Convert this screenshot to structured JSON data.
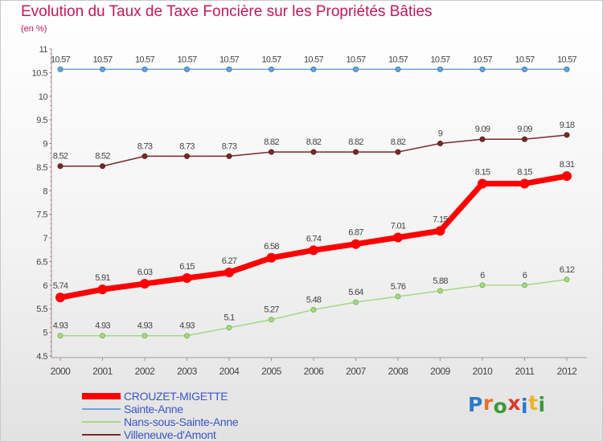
{
  "title": "Evolution du Taux de Taxe Foncière sur les Propriétés Bâties",
  "unit": "(en %)",
  "logo": {
    "text": "Proxiti",
    "colors": [
      "#2b7bc9",
      "#e8702a",
      "#3a9a3a",
      "#d93a2a",
      "#2b7bc9",
      "#e8b52a",
      "#3a9a3a"
    ]
  },
  "chart_data": {
    "type": "line",
    "x": [
      "2000",
      "2001",
      "2002",
      "2003",
      "2004",
      "2005",
      "2006",
      "2007",
      "2008",
      "2009",
      "2010",
      "2011",
      "2012"
    ],
    "ylim": [
      4.5,
      11
    ],
    "yticks": [
      "4.5",
      "5",
      "5.5",
      "6",
      "6.5",
      "7",
      "7.5",
      "8",
      "8.5",
      "9",
      "9.5",
      "10",
      "10.5",
      "11"
    ],
    "grid": false,
    "series": [
      {
        "name": "CROUZET-MIGETTE",
        "color": "#ff0000",
        "width": 7,
        "values": [
          5.74,
          5.91,
          6.03,
          6.15,
          6.27,
          6.58,
          6.74,
          6.87,
          7.01,
          7.15,
          8.15,
          8.15,
          8.31
        ],
        "labels": [
          "5.74",
          "5.91",
          "6.03",
          "6.15",
          "6.27",
          "6.58",
          "6.74",
          "6.87",
          "7.01",
          "7.15",
          "8.15",
          "8.15",
          "8.31"
        ]
      },
      {
        "name": "Sainte-Anne",
        "color": "#6aa6d8",
        "width": 1.5,
        "values": [
          10.57,
          10.57,
          10.57,
          10.57,
          10.57,
          10.57,
          10.57,
          10.57,
          10.57,
          10.57,
          10.57,
          10.57,
          10.57
        ],
        "labels": [
          "10.57",
          "10.57",
          "10.57",
          "10.57",
          "10.57",
          "10.57",
          "10.57",
          "10.57",
          "10.57",
          "10.57",
          "10.57",
          "10.57",
          "10.57"
        ]
      },
      {
        "name": "Nans-sous-Sainte-Anne",
        "color": "#a6d882",
        "width": 1.5,
        "values": [
          4.93,
          4.93,
          4.93,
          4.93,
          5.1,
          5.27,
          5.48,
          5.64,
          5.76,
          5.88,
          6,
          6,
          6.12
        ],
        "labels": [
          "4.93",
          "4.93",
          "4.93",
          "4.93",
          "5.1",
          "5.27",
          "5.48",
          "5.64",
          "5.76",
          "5.88",
          "6",
          "6",
          "6.12"
        ]
      },
      {
        "name": "Villeneuve-d'Amont",
        "color": "#7a2a2a",
        "width": 1.5,
        "values": [
          8.52,
          8.52,
          8.73,
          8.73,
          8.73,
          8.82,
          8.82,
          8.82,
          8.82,
          9,
          9.09,
          9.09,
          9.18
        ],
        "labels": [
          "8.52",
          "8.52",
          "8.73",
          "8.73",
          "8.73",
          "8.82",
          "8.82",
          "8.82",
          "8.82",
          "9",
          "9.09",
          "9.09",
          "9.18"
        ]
      }
    ]
  }
}
